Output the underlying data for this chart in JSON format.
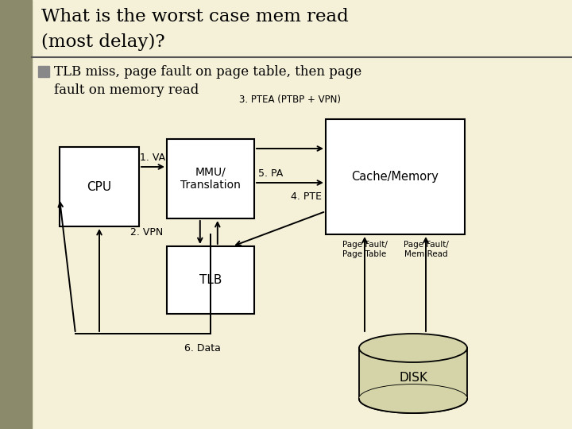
{
  "title_line1": "What is the worst case mem read",
  "title_line2": "(most delay)?",
  "bullet_text": "TLB miss, page fault on page table, then page\nfault on memory read",
  "bg_color": "#f5f0d8",
  "title_color": "#000000",
  "box_color": "#ffffff",
  "box_edge": "#000000",
  "disk_fill": "#d4d4a8",
  "left_bar_color": "#8b8b6b",
  "cpu_label": "CPU",
  "mmu_label": "MMU/\nTranslation",
  "tlb_label": "TLB",
  "cache_label": "Cache/Memory",
  "disk_label": "DISK",
  "label_1va": "1. VA",
  "label_2vpn": "2. VPN",
  "label_3ptea": "3. PTEA (PTBP + VPN)",
  "label_4pte": "4. PTE",
  "label_5pa": "5. PA",
  "label_6data": "6. Data",
  "label_pf1": "Page Fault/\nPage Table",
  "label_pf2": "Page Fault/\nMem Read",
  "figw": 7.2,
  "figh": 5.4,
  "dpi": 100
}
